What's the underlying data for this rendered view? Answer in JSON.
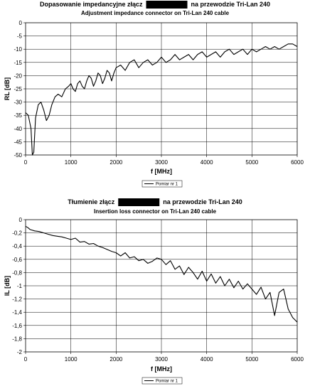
{
  "chart_data": [
    {
      "type": "line",
      "title_before": "Dopasowanie impedancyjne złącz",
      "title_after": "na przewodzie Tri-Lan 240",
      "subtitle": "Adjustment impedance connector on Tri-Lan 240 cable",
      "xlabel": "f [MHz]",
      "ylabel": "RL [dB]",
      "xlim": [
        0,
        6000
      ],
      "ylim": [
        -50,
        0
      ],
      "xticks": [
        0,
        1000,
        2000,
        3000,
        4000,
        5000,
        6000
      ],
      "yticks": [
        0,
        -5,
        -10,
        -15,
        -20,
        -25,
        -30,
        -35,
        -40,
        -45,
        -50
      ],
      "grid": true,
      "legend": "bottom",
      "series": [
        {
          "name": "Pomiar nr 1",
          "x": [
            0,
            60,
            120,
            150,
            180,
            220,
            280,
            340,
            400,
            460,
            520,
            580,
            650,
            720,
            800,
            880,
            950,
            1000,
            1050,
            1100,
            1150,
            1200,
            1250,
            1300,
            1350,
            1400,
            1450,
            1500,
            1550,
            1600,
            1650,
            1700,
            1750,
            1800,
            1850,
            1900,
            1950,
            2000,
            2100,
            2200,
            2300,
            2400,
            2500,
            2600,
            2700,
            2800,
            2900,
            3000,
            3100,
            3200,
            3300,
            3400,
            3500,
            3600,
            3700,
            3800,
            3900,
            4000,
            4100,
            4200,
            4300,
            4400,
            4500,
            4600,
            4700,
            4800,
            4900,
            5000,
            5100,
            5200,
            5300,
            5400,
            5500,
            5600,
            5700,
            5800,
            5900,
            6000
          ],
          "y": [
            -34,
            -35,
            -40,
            -50,
            -49,
            -36,
            -31,
            -30,
            -33,
            -37,
            -35,
            -31,
            -28,
            -27,
            -28,
            -25,
            -24,
            -23,
            -25,
            -26,
            -23,
            -22,
            -24,
            -25,
            -22,
            -20,
            -21,
            -24,
            -22,
            -19,
            -20,
            -23,
            -21,
            -18,
            -19,
            -22,
            -19,
            -17,
            -16,
            -18,
            -15,
            -14,
            -17,
            -15,
            -14,
            -16,
            -15,
            -13,
            -15,
            -14,
            -12,
            -14,
            -13,
            -12,
            -14,
            -12,
            -11,
            -13,
            -12,
            -11,
            -13,
            -11,
            -10,
            -12,
            -11,
            -10,
            -12,
            -10,
            -11,
            -10,
            -9,
            -10,
            -9,
            -10,
            -9,
            -8,
            -8,
            -9
          ]
        }
      ]
    },
    {
      "type": "line",
      "title_before": "Tłumienie złącz",
      "title_after": "na przewodzie Tri-Lan 240",
      "subtitle": "Insertion loss connector on Tri-Lan 240 cable",
      "xlabel": "f [MHz]",
      "ylabel": "IL [dB]",
      "xlim": [
        0,
        6000
      ],
      "ylim": [
        -2,
        0
      ],
      "xticks": [
        0,
        1000,
        2000,
        3000,
        4000,
        5000,
        6000
      ],
      "yticks": [
        0,
        -0.2,
        -0.4,
        -0.6,
        -0.8,
        -1,
        -1.2,
        -1.4,
        -1.6,
        -1.8,
        -2
      ],
      "ytick_labels": [
        "0",
        "-0,2",
        "-0,4",
        "-0,6",
        "-0,8",
        "-1",
        "-1,2",
        "-1,4",
        "-1,6",
        "-1,8",
        "-2"
      ],
      "grid": true,
      "legend": "bottom",
      "series": [
        {
          "name": "Pomiar nr 1",
          "x": [
            0,
            50,
            100,
            200,
            300,
            400,
            500,
            600,
            700,
            800,
            900,
            1000,
            1100,
            1200,
            1300,
            1400,
            1500,
            1600,
            1700,
            1800,
            1900,
            2000,
            2100,
            2200,
            2300,
            2400,
            2500,
            2600,
            2700,
            2800,
            2900,
            3000,
            3100,
            3200,
            3300,
            3400,
            3500,
            3600,
            3700,
            3800,
            3900,
            4000,
            4100,
            4200,
            4300,
            4400,
            4500,
            4600,
            4700,
            4800,
            4900,
            5000,
            5100,
            5200,
            5300,
            5400,
            5500,
            5600,
            5700,
            5800,
            5900,
            6000
          ],
          "y": [
            -0.1,
            -0.12,
            -0.15,
            -0.17,
            -0.18,
            -0.2,
            -0.22,
            -0.24,
            -0.25,
            -0.26,
            -0.28,
            -0.3,
            -0.28,
            -0.34,
            -0.33,
            -0.37,
            -0.36,
            -0.4,
            -0.42,
            -0.45,
            -0.48,
            -0.5,
            -0.55,
            -0.5,
            -0.58,
            -0.56,
            -0.62,
            -0.6,
            -0.66,
            -0.63,
            -0.58,
            -0.6,
            -0.68,
            -0.62,
            -0.75,
            -0.7,
            -0.83,
            -0.72,
            -0.8,
            -0.9,
            -0.78,
            -0.93,
            -0.82,
            -0.96,
            -0.86,
            -1.0,
            -0.9,
            -1.03,
            -0.93,
            -1.05,
            -0.97,
            -1.05,
            -1.13,
            -1.02,
            -1.2,
            -1.1,
            -1.45,
            -1.1,
            -1.05,
            -1.35,
            -1.48,
            -1.55
          ]
        }
      ]
    }
  ]
}
